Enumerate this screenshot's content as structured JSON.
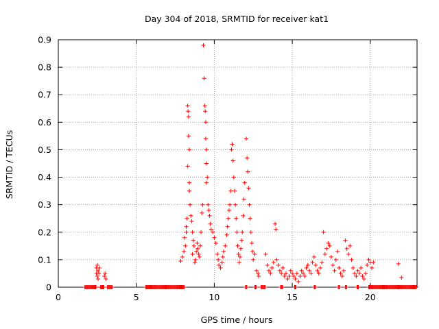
{
  "chart_data": {
    "type": "scatter",
    "title": "Day 304 of 2018, SRMTID for receiver kat1",
    "xlabel": "GPS time / hours",
    "ylabel": "SRMTID / TECUs",
    "xlim": [
      0,
      23
    ],
    "ylim": [
      0,
      0.9
    ],
    "xticks": [
      0,
      5,
      10,
      15,
      20
    ],
    "yticks": [
      0,
      0.1,
      0.2,
      0.3,
      0.4,
      0.5,
      0.6,
      0.7,
      0.8,
      0.9
    ],
    "xtick_labels": [
      "0",
      "5",
      "10",
      "15",
      "20"
    ],
    "ytick_labels": [
      "0",
      "0.1",
      "0.2",
      "0.3",
      "0.4",
      "0.5",
      "0.6",
      "0.7",
      "0.8",
      "0.9"
    ],
    "grid": true,
    "marker": "+",
    "color": "#ff0000",
    "series": [
      {
        "name": "SRMTID kat1",
        "points": [
          [
            2.45,
            0.07
          ],
          [
            2.5,
            0.08
          ],
          [
            2.55,
            0.06
          ],
          [
            2.6,
            0.05
          ],
          [
            2.5,
            0.04
          ],
          [
            2.55,
            0.03
          ],
          [
            2.65,
            0.07
          ],
          [
            2.45,
            0.05
          ],
          [
            2.95,
            0.04
          ],
          [
            3.0,
            0.05
          ],
          [
            3.05,
            0.03
          ],
          [
            7.85,
            0.095
          ],
          [
            7.95,
            0.11
          ],
          [
            8.05,
            0.13
          ],
          [
            8.1,
            0.18
          ],
          [
            8.15,
            0.15
          ],
          [
            8.2,
            0.2
          ],
          [
            8.2,
            0.22
          ],
          [
            8.25,
            0.25
          ],
          [
            8.3,
            0.66
          ],
          [
            8.32,
            0.64
          ],
          [
            8.35,
            0.62
          ],
          [
            8.35,
            0.55
          ],
          [
            8.4,
            0.5
          ],
          [
            8.3,
            0.44
          ],
          [
            8.4,
            0.38
          ],
          [
            8.4,
            0.35
          ],
          [
            8.45,
            0.3
          ],
          [
            8.5,
            0.26
          ],
          [
            8.55,
            0.24
          ],
          [
            8.6,
            0.2
          ],
          [
            8.65,
            0.17
          ],
          [
            8.7,
            0.15
          ],
          [
            8.6,
            0.12
          ],
          [
            8.8,
            0.1
          ],
          [
            8.75,
            0.09
          ],
          [
            8.85,
            0.13
          ],
          [
            8.9,
            0.16
          ],
          [
            8.95,
            0.14
          ],
          [
            9.0,
            0.12
          ],
          [
            9.05,
            0.11
          ],
          [
            9.1,
            0.15
          ],
          [
            9.15,
            0.2
          ],
          [
            9.2,
            0.27
          ],
          [
            9.25,
            0.3
          ],
          [
            9.3,
            0.88
          ],
          [
            9.35,
            0.76
          ],
          [
            9.4,
            0.66
          ],
          [
            9.42,
            0.64
          ],
          [
            9.45,
            0.6
          ],
          [
            9.45,
            0.54
          ],
          [
            9.5,
            0.5
          ],
          [
            9.5,
            0.45
          ],
          [
            9.55,
            0.4
          ],
          [
            9.5,
            0.38
          ],
          [
            9.6,
            0.3
          ],
          [
            9.65,
            0.28
          ],
          [
            9.7,
            0.26
          ],
          [
            9.75,
            0.23
          ],
          [
            9.8,
            0.21
          ],
          [
            9.9,
            0.2
          ],
          [
            10.0,
            0.18
          ],
          [
            10.1,
            0.16
          ],
          [
            10.2,
            0.12
          ],
          [
            10.25,
            0.1
          ],
          [
            10.3,
            0.08
          ],
          [
            10.4,
            0.07
          ],
          [
            10.5,
            0.09
          ],
          [
            10.55,
            0.11
          ],
          [
            10.6,
            0.13
          ],
          [
            10.7,
            0.15
          ],
          [
            10.8,
            0.19
          ],
          [
            10.85,
            0.22
          ],
          [
            10.9,
            0.25
          ],
          [
            10.95,
            0.28
          ],
          [
            11.0,
            0.3
          ],
          [
            11.05,
            0.35
          ],
          [
            11.1,
            0.5
          ],
          [
            11.15,
            0.52
          ],
          [
            11.2,
            0.46
          ],
          [
            11.25,
            0.4
          ],
          [
            11.3,
            0.35
          ],
          [
            11.35,
            0.3
          ],
          [
            11.4,
            0.25
          ],
          [
            11.45,
            0.2
          ],
          [
            11.5,
            0.15
          ],
          [
            11.55,
            0.12
          ],
          [
            11.6,
            0.09
          ],
          [
            11.65,
            0.11
          ],
          [
            11.7,
            0.14
          ],
          [
            11.75,
            0.17
          ],
          [
            11.8,
            0.2
          ],
          [
            11.85,
            0.26
          ],
          [
            11.9,
            0.32
          ],
          [
            11.95,
            0.38
          ],
          [
            12.05,
            0.54
          ],
          [
            12.1,
            0.47
          ],
          [
            12.15,
            0.42
          ],
          [
            12.2,
            0.36
          ],
          [
            12.25,
            0.3
          ],
          [
            12.3,
            0.25
          ],
          [
            12.35,
            0.2
          ],
          [
            12.4,
            0.16
          ],
          [
            12.45,
            0.13
          ],
          [
            12.5,
            0.1
          ],
          [
            12.6,
            0.12
          ],
          [
            12.7,
            0.06
          ],
          [
            12.8,
            0.05
          ],
          [
            12.85,
            0.04
          ],
          [
            13.3,
            0.12
          ],
          [
            13.4,
            0.08
          ],
          [
            13.5,
            0.06
          ],
          [
            13.6,
            0.05
          ],
          [
            13.7,
            0.07
          ],
          [
            13.8,
            0.09
          ],
          [
            13.9,
            0.23
          ],
          [
            13.95,
            0.21
          ],
          [
            14.0,
            0.1
          ],
          [
            14.1,
            0.08
          ],
          [
            14.2,
            0.06
          ],
          [
            14.3,
            0.05
          ],
          [
            14.4,
            0.07
          ],
          [
            14.5,
            0.04
          ],
          [
            14.6,
            0.05
          ],
          [
            14.7,
            0.03
          ],
          [
            14.8,
            0.04
          ],
          [
            14.9,
            0.06
          ],
          [
            15.0,
            0.05
          ],
          [
            15.1,
            0.04
          ],
          [
            15.2,
            0.03
          ],
          [
            15.3,
            0.05
          ],
          [
            15.4,
            0.02
          ],
          [
            15.5,
            0.04
          ],
          [
            15.6,
            0.06
          ],
          [
            15.7,
            0.05
          ],
          [
            15.8,
            0.04
          ],
          [
            15.9,
            0.07
          ],
          [
            16.0,
            0.08
          ],
          [
            16.1,
            0.06
          ],
          [
            16.2,
            0.05
          ],
          [
            16.3,
            0.09
          ],
          [
            16.4,
            0.11
          ],
          [
            16.5,
            0.08
          ],
          [
            16.6,
            0.06
          ],
          [
            16.7,
            0.05
          ],
          [
            16.8,
            0.07
          ],
          [
            16.9,
            0.09
          ],
          [
            17.0,
            0.2
          ],
          [
            17.1,
            0.12
          ],
          [
            17.2,
            0.14
          ],
          [
            17.3,
            0.16
          ],
          [
            17.4,
            0.15
          ],
          [
            17.5,
            0.11
          ],
          [
            17.6,
            0.08
          ],
          [
            17.7,
            0.06
          ],
          [
            17.8,
            0.1
          ],
          [
            17.9,
            0.13
          ],
          [
            18.0,
            0.07
          ],
          [
            18.1,
            0.05
          ],
          [
            18.2,
            0.04
          ],
          [
            18.3,
            0.06
          ],
          [
            18.4,
            0.17
          ],
          [
            18.5,
            0.14
          ],
          [
            18.6,
            0.12
          ],
          [
            18.7,
            0.15
          ],
          [
            18.8,
            0.1
          ],
          [
            18.9,
            0.07
          ],
          [
            19.0,
            0.05
          ],
          [
            19.1,
            0.04
          ],
          [
            19.2,
            0.06
          ],
          [
            19.3,
            0.05
          ],
          [
            19.4,
            0.07
          ],
          [
            19.5,
            0.04
          ],
          [
            19.6,
            0.03
          ],
          [
            19.7,
            0.05
          ],
          [
            19.8,
            0.08
          ],
          [
            19.9,
            0.1
          ],
          [
            20.0,
            0.09
          ],
          [
            20.1,
            0.07
          ],
          [
            20.2,
            0.09
          ],
          [
            21.8,
            0.085
          ],
          [
            22.0,
            0.035
          ]
        ],
        "zero_bands": [
          [
            1.7,
            2.45
          ],
          [
            2.7,
            2.95
          ],
          [
            3.15,
            3.5
          ],
          [
            5.6,
            8.1
          ],
          [
            12.0,
            12.1
          ],
          [
            12.6,
            12.7
          ],
          [
            13.0,
            13.3
          ],
          [
            14.25,
            14.4
          ],
          [
            15.15,
            15.25
          ],
          [
            16.4,
            16.5
          ],
          [
            17.95,
            18.05
          ],
          [
            18.4,
            18.5
          ],
          [
            19.15,
            19.25
          ],
          [
            19.9,
            23.0
          ]
        ]
      }
    ]
  }
}
